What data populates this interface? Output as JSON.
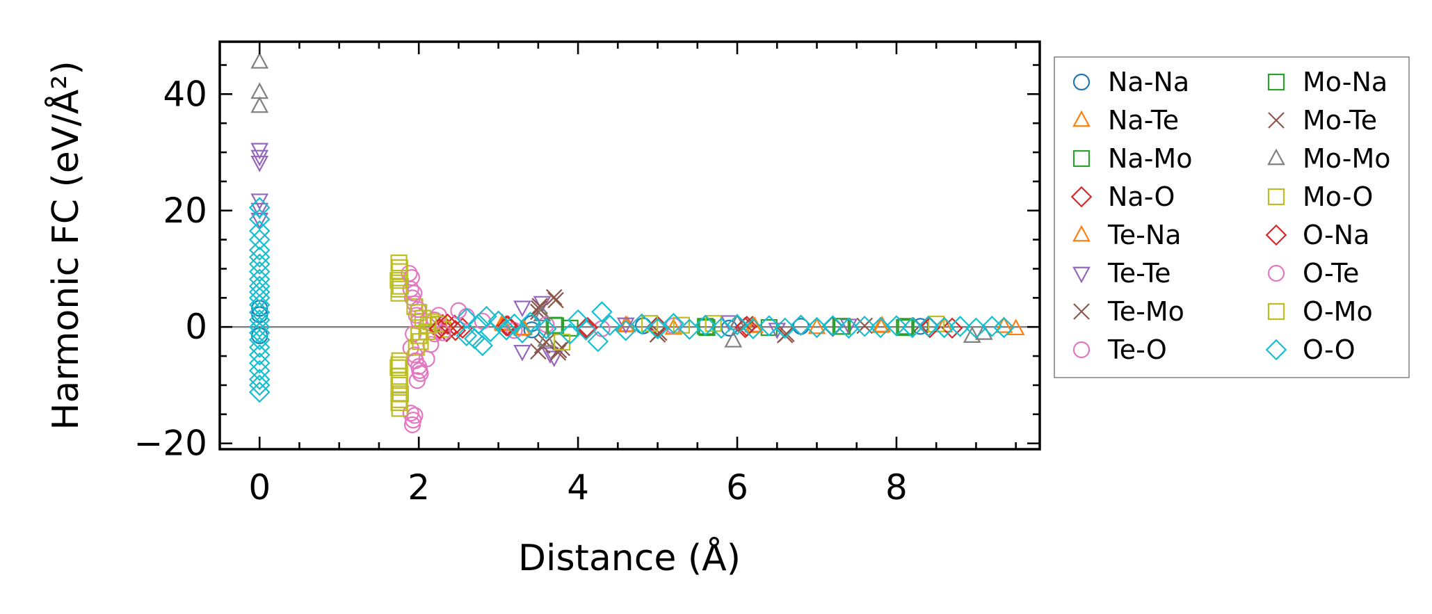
{
  "chart_data": {
    "type": "scatter",
    "xlabel": "Distance (Å)",
    "ylabel": "Harmonic FC (eV/Å²)",
    "xlim": [
      -0.5,
      9.8
    ],
    "ylim": [
      -21,
      49
    ],
    "xticks": [
      0,
      2,
      4,
      6,
      8
    ],
    "xtick_labels": [
      "0",
      "2",
      "4",
      "6",
      "8"
    ],
    "yticks": [
      -20,
      0,
      20,
      40
    ],
    "ytick_labels": [
      "−20",
      "0",
      "20",
      "40"
    ],
    "zero_line": true,
    "grid": false,
    "legend_position": "right-outside",
    "series": [
      {
        "name": "Na-Na",
        "marker": "circle",
        "color": "#1f77b4",
        "points": [
          [
            0,
            3.2
          ],
          [
            0,
            2.1
          ],
          [
            0,
            -1.5
          ],
          [
            3.42,
            -0.5
          ],
          [
            3.42,
            0.6
          ],
          [
            4.82,
            0.2
          ],
          [
            5.9,
            -0.2
          ],
          [
            6.8,
            0.1
          ],
          [
            8.3,
            0.1
          ]
        ]
      },
      {
        "name": "Na-Te",
        "marker": "triangle-up",
        "color": "#ff7f0e",
        "points": [
          [
            3.05,
            0.6
          ],
          [
            3.3,
            -0.4
          ],
          [
            4.6,
            0.3
          ],
          [
            5.2,
            -0.2
          ],
          [
            6.2,
            0.2
          ],
          [
            7.0,
            -0.1
          ],
          [
            7.8,
            0.1
          ],
          [
            8.6,
            0.2
          ],
          [
            9.5,
            -0.3
          ]
        ]
      },
      {
        "name": "Na-Mo",
        "marker": "square",
        "color": "#2ca02c",
        "points": [
          [
            3.7,
            0.3
          ],
          [
            3.9,
            -0.2
          ],
          [
            5.6,
            0.1
          ],
          [
            6.4,
            -0.1
          ],
          [
            7.3,
            0.1
          ],
          [
            8.1,
            -0.1
          ]
        ]
      },
      {
        "name": "Na-O",
        "marker": "diamond",
        "color": "#d62728",
        "points": [
          [
            2.25,
            -0.5
          ],
          [
            2.3,
            0.4
          ],
          [
            2.35,
            -0.8
          ],
          [
            2.45,
            0.3
          ],
          [
            2.55,
            -0.2
          ],
          [
            3.1,
            0.2
          ],
          [
            4.1,
            -0.2
          ],
          [
            5.0,
            0.1
          ],
          [
            6.1,
            -0.1
          ],
          [
            7.2,
            0.1
          ],
          [
            8.4,
            0.1
          ],
          [
            8.7,
            -0.2
          ]
        ]
      },
      {
        "name": "Te-Na",
        "marker": "triangle-up",
        "color": "#ff7f0e",
        "points": [
          [
            3.06,
            0.4
          ],
          [
            3.32,
            -0.3
          ],
          [
            4.62,
            0.2
          ],
          [
            6.22,
            0.1
          ],
          [
            7.82,
            0.2
          ],
          [
            9.35,
            0.1
          ]
        ]
      },
      {
        "name": "Te-Te",
        "marker": "triangle-down",
        "color": "#9467bd",
        "points": [
          [
            0,
            30.5
          ],
          [
            0,
            29.3
          ],
          [
            0,
            28.3
          ],
          [
            0,
            21.8
          ],
          [
            0,
            20.2
          ],
          [
            0,
            18.5
          ],
          [
            3.3,
            3.4
          ],
          [
            3.3,
            -4.2
          ],
          [
            3.55,
            4.2
          ],
          [
            3.65,
            -4.6
          ],
          [
            3.7,
            -5.2
          ],
          [
            4.6,
            0.5
          ],
          [
            5.9,
            0.9
          ],
          [
            6.5,
            -0.4
          ],
          [
            7.4,
            0.3
          ]
        ]
      },
      {
        "name": "Te-Mo",
        "marker": "cross",
        "color": "#8c564b",
        "points": [
          [
            3.5,
            2.6
          ],
          [
            3.52,
            3.6
          ],
          [
            3.5,
            -4.2
          ],
          [
            3.55,
            -3.2
          ],
          [
            3.7,
            5.1
          ],
          [
            3.75,
            -4.4
          ],
          [
            3.8,
            -3.6
          ],
          [
            3.6,
            -2.6
          ],
          [
            5.0,
            -1.3
          ],
          [
            6.1,
            0.5
          ],
          [
            6.6,
            -1.4
          ],
          [
            7.6,
            0.2
          ],
          [
            8.3,
            0.3
          ]
        ]
      },
      {
        "name": "Te-O",
        "marker": "circle",
        "color": "#e377c2",
        "points": [
          [
            1.9,
            -14.8
          ],
          [
            1.92,
            -16.8
          ],
          [
            1.95,
            -15.2
          ],
          [
            1.88,
            9.2
          ],
          [
            1.9,
            6.5
          ],
          [
            1.92,
            5.0
          ],
          [
            1.95,
            4.0
          ],
          [
            1.97,
            2.0
          ],
          [
            2.0,
            1.0
          ],
          [
            1.93,
            -1.2
          ],
          [
            1.9,
            -3.6
          ],
          [
            1.95,
            -4.8
          ],
          [
            2.0,
            -6.8
          ],
          [
            2.02,
            -8.0
          ],
          [
            1.98,
            -9.2
          ],
          [
            2.1,
            -5.5
          ],
          [
            2.15,
            -3.0
          ],
          [
            2.2,
            -1.2
          ],
          [
            2.2,
            1.2
          ],
          [
            2.25,
            2.0
          ],
          [
            2.5,
            2.8
          ],
          [
            2.8,
            1.0
          ],
          [
            3.2,
            -0.6
          ],
          [
            3.6,
            0.4
          ],
          [
            4.3,
            -0.3
          ],
          [
            5.2,
            0.2
          ]
        ]
      },
      {
        "name": "Mo-Na",
        "marker": "square",
        "color": "#2ca02c",
        "points": [
          [
            3.72,
            0.2
          ],
          [
            5.62,
            -0.1
          ],
          [
            7.32,
            0.1
          ],
          [
            8.12,
            0.1
          ]
        ]
      },
      {
        "name": "Mo-Te",
        "marker": "cross",
        "color": "#8c564b",
        "points": [
          [
            3.51,
            3.2
          ],
          [
            3.72,
            4.6
          ],
          [
            3.76,
            -4.0
          ],
          [
            5.02,
            -1.0
          ],
          [
            6.62,
            -1.2
          ]
        ]
      },
      {
        "name": "Mo-Mo",
        "marker": "triangle-up",
        "color": "#7f7f7f",
        "points": [
          [
            0,
            45.5
          ],
          [
            0,
            40.3
          ],
          [
            0,
            37.9
          ],
          [
            3.55,
            2.1
          ],
          [
            3.6,
            -2.3
          ],
          [
            5.95,
            -2.4
          ],
          [
            6.0,
            0.6
          ],
          [
            8.95,
            -1.6
          ],
          [
            9.1,
            -1.1
          ]
        ]
      },
      {
        "name": "Mo-O",
        "marker": "square",
        "color": "#bcbd22",
        "points": [
          [
            1.75,
            11.0
          ],
          [
            1.76,
            9.5
          ],
          [
            1.74,
            8.0
          ],
          [
            1.77,
            7.0
          ],
          [
            1.75,
            5.8
          ],
          [
            1.76,
            -5.8
          ],
          [
            1.74,
            -7.0
          ],
          [
            1.76,
            -8.5
          ],
          [
            1.75,
            -10.0
          ],
          [
            1.77,
            -11.5
          ],
          [
            1.75,
            -13.0
          ],
          [
            1.76,
            -14.0
          ],
          [
            1.95,
            3.5
          ],
          [
            1.97,
            -3.5
          ],
          [
            2.0,
            -1.5
          ],
          [
            2.05,
            1.5
          ],
          [
            2.1,
            -0.8
          ],
          [
            2.15,
            0.9
          ],
          [
            2.25,
            0.5
          ],
          [
            2.3,
            -0.4
          ],
          [
            3.8,
            -2.6
          ],
          [
            4.9,
            0.6
          ],
          [
            5.3,
            0.3
          ],
          [
            5.7,
            0.6
          ],
          [
            8.5,
            0.5
          ]
        ]
      },
      {
        "name": "O-Na",
        "marker": "diamond",
        "color": "#d62728",
        "points": [
          [
            2.26,
            -0.3
          ],
          [
            2.36,
            0.5
          ],
          [
            2.46,
            -0.6
          ],
          [
            3.12,
            0.2
          ],
          [
            4.12,
            -0.1
          ],
          [
            6.12,
            0.1
          ],
          [
            8.42,
            -0.1
          ]
        ]
      },
      {
        "name": "O-Te",
        "marker": "circle",
        "color": "#e377c2",
        "points": [
          [
            1.91,
            8.5
          ],
          [
            1.94,
            5.8
          ],
          [
            1.99,
            3.0
          ],
          [
            1.96,
            -5.8
          ],
          [
            2.01,
            -7.5
          ],
          [
            1.93,
            -16.0
          ],
          [
            2.3,
            -1.0
          ],
          [
            2.6,
            1.8
          ]
        ]
      },
      {
        "name": "O-Mo",
        "marker": "square",
        "color": "#bcbd22",
        "points": [
          [
            1.76,
            10.2
          ],
          [
            1.75,
            6.5
          ],
          [
            1.75,
            -6.5
          ],
          [
            1.76,
            -9.2
          ],
          [
            1.75,
            -12.5
          ],
          [
            2.0,
            2.5
          ],
          [
            2.02,
            -2.5
          ],
          [
            2.12,
            0.3
          ]
        ]
      },
      {
        "name": "O-O",
        "marker": "diamond",
        "color": "#17becf",
        "points": [
          [
            0,
            20.5
          ],
          [
            0,
            18.5
          ],
          [
            0,
            16.5
          ],
          [
            0,
            15.0
          ],
          [
            0,
            13.2
          ],
          [
            0,
            12.0
          ],
          [
            0,
            10.8
          ],
          [
            0,
            9.5
          ],
          [
            0,
            8.2
          ],
          [
            0,
            7.0
          ],
          [
            0,
            6.0
          ],
          [
            0,
            5.0
          ],
          [
            0,
            3.8
          ],
          [
            0,
            2.5
          ],
          [
            0,
            1.2
          ],
          [
            0,
            0
          ],
          [
            0,
            -1.0
          ],
          [
            0,
            -2.2
          ],
          [
            0,
            -3.5
          ],
          [
            0,
            -4.8
          ],
          [
            0,
            -6.2
          ],
          [
            0,
            -7.5
          ],
          [
            0,
            -9.0
          ],
          [
            0,
            -10.0
          ],
          [
            0,
            -11.2
          ],
          [
            2.6,
            -1.5
          ],
          [
            2.6,
            1.5
          ],
          [
            2.7,
            -2.0
          ],
          [
            2.75,
            0.5
          ],
          [
            2.8,
            -3.2
          ],
          [
            2.85,
            1.8
          ],
          [
            2.9,
            -0.8
          ],
          [
            3.0,
            1.0
          ],
          [
            3.1,
            -0.5
          ],
          [
            3.2,
            0.5
          ],
          [
            3.3,
            -1.0
          ],
          [
            3.4,
            0.8
          ],
          [
            3.6,
            -0.3
          ],
          [
            3.9,
            -1.2
          ],
          [
            4.0,
            1.2
          ],
          [
            4.1,
            -0.5
          ],
          [
            4.25,
            -2.5
          ],
          [
            4.3,
            2.6
          ],
          [
            4.4,
            0.3
          ],
          [
            4.6,
            -0.6
          ],
          [
            4.8,
            0.5
          ],
          [
            5.0,
            -0.3
          ],
          [
            5.2,
            0.6
          ],
          [
            5.4,
            -0.4
          ],
          [
            5.6,
            0.3
          ],
          [
            5.8,
            -0.2
          ],
          [
            6.0,
            0.4
          ],
          [
            6.2,
            -0.3
          ],
          [
            6.4,
            0.2
          ],
          [
            6.6,
            -0.2
          ],
          [
            6.8,
            0.3
          ],
          [
            7.0,
            -0.1
          ],
          [
            7.2,
            0.2
          ],
          [
            7.4,
            -0.2
          ],
          [
            7.6,
            0.1
          ],
          [
            7.8,
            -0.1
          ],
          [
            8.0,
            0.2
          ],
          [
            8.2,
            -0.1
          ],
          [
            8.4,
            0.1
          ],
          [
            8.6,
            -0.1
          ],
          [
            8.8,
            0.1
          ],
          [
            9.0,
            -0.2
          ],
          [
            9.2,
            0.1
          ],
          [
            9.35,
            -0.1
          ]
        ]
      }
    ]
  }
}
